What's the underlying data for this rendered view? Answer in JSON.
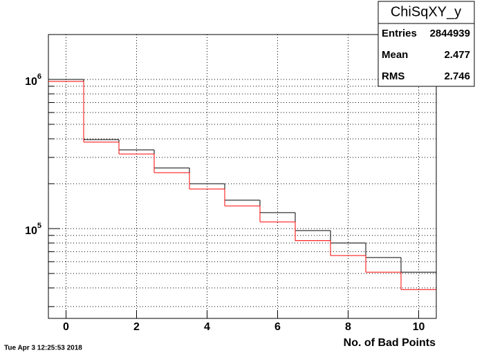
{
  "chart_data": {
    "type": "histogram",
    "bins": [
      -0.5,
      0.5,
      1.5,
      2.5,
      3.5,
      4.5,
      5.5,
      6.5,
      7.5,
      8.5,
      9.5,
      10.5
    ],
    "series": [
      {
        "color": "#000000",
        "values": [
          1000000,
          395000,
          337000,
          255000,
          200000,
          155000,
          128000,
          97000,
          80000,
          64000,
          51000
        ]
      },
      {
        "color": "#ff0000",
        "values": [
          970000,
          380000,
          316000,
          237000,
          184000,
          142000,
          111000,
          83000,
          66000,
          51000,
          39000
        ]
      }
    ],
    "xlabel": "No. of Bad Points",
    "xlim": [
      -0.5,
      10.5
    ],
    "xticks": [
      0,
      2,
      4,
      6,
      8,
      10
    ],
    "ylim": [
      25000,
      2000000
    ],
    "log_y": true,
    "yticks": [
      {
        "value": 100000,
        "label": "10",
        "exponent": "5"
      },
      {
        "value": 1000000,
        "label": "10",
        "exponent": "6"
      }
    ],
    "yminorticks": [
      30000,
      40000,
      50000,
      60000,
      70000,
      80000,
      90000,
      200000,
      300000,
      400000,
      500000,
      600000,
      700000,
      800000,
      900000
    ],
    "grid": true,
    "stats": {
      "title": "ChiSqXY_y",
      "rows": [
        [
          "Entries",
          "2844939"
        ],
        [
          "Mean",
          "2.477"
        ],
        [
          "RMS",
          "2.746"
        ]
      ]
    },
    "timestamp": "Tue Apr  3 12:25:53 2018"
  }
}
